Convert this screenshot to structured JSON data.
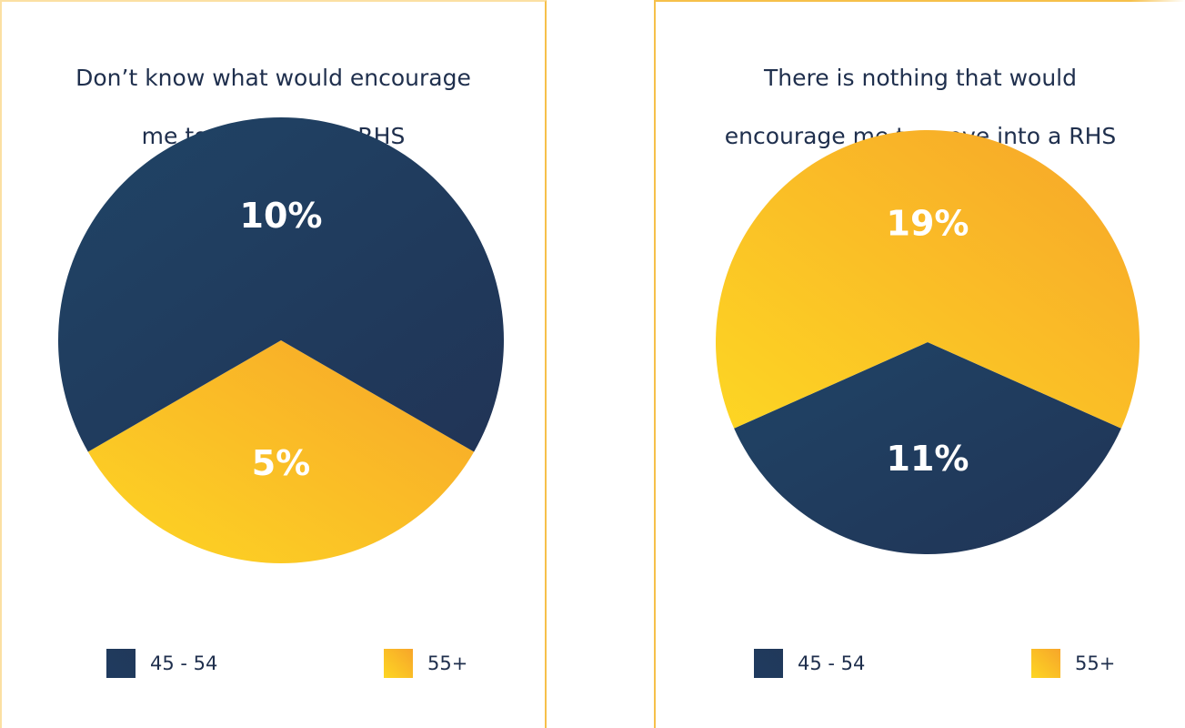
{
  "chart_data": [
    {
      "type": "pie",
      "title": "Don’t know what would encourage me to move into a RHS",
      "title_lines": [
        "Don’t know what would encourage",
        "me to move into a RHS"
      ],
      "slices": [
        {
          "label": "45 - 54",
          "value": 10,
          "value_label": "10%",
          "color": "#1f3a5f"
        },
        {
          "label": "55+",
          "value": 5,
          "value_label": "5%",
          "color": "#f7a52a"
        }
      ],
      "legend": [
        "45 - 54",
        "55+"
      ],
      "legend_placement": "bottom"
    },
    {
      "type": "pie",
      "title": "There is nothing that would encourage me to move into a RHS",
      "title_lines": [
        "There is nothing that would",
        "encourage me to move into a RHS"
      ],
      "slices": [
        {
          "label": "45 - 54",
          "value": 11,
          "value_label": "11%",
          "color": "#1f3a5f"
        },
        {
          "label": "55+",
          "value": 19,
          "value_label": "19%",
          "color": "#f7a52a"
        }
      ],
      "legend": [
        "45 - 54",
        "55+"
      ],
      "legend_placement": "bottom"
    }
  ],
  "colors": {
    "navy": "#1f3a5f",
    "navy_light": "#1f4466",
    "orange": "#f7a52a",
    "yellow": "#fdd623",
    "panel_border": "#f6c04a"
  }
}
